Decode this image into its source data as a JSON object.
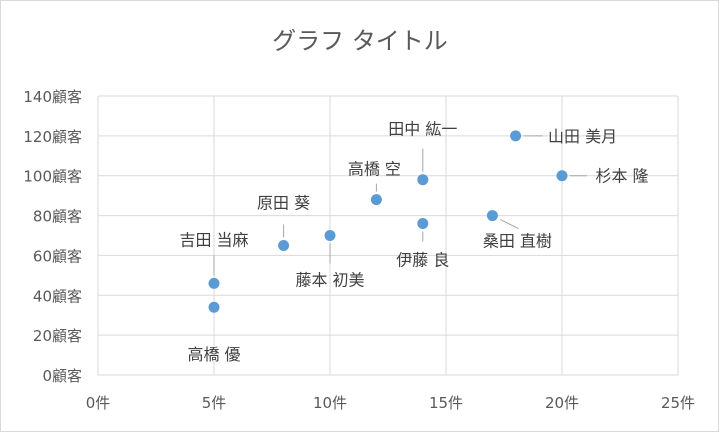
{
  "chart_data": {
    "type": "scatter",
    "title": "グラフ タイトル",
    "xlabel": "",
    "ylabel": "",
    "xlim": [
      0,
      25
    ],
    "ylim": [
      0,
      140
    ],
    "x_ticks": [
      0,
      5,
      10,
      15,
      20,
      25
    ],
    "y_ticks": [
      0,
      20,
      40,
      60,
      80,
      100,
      120,
      140
    ],
    "x_tick_labels": [
      "0件",
      "5件",
      "10件",
      "15件",
      "20件",
      "25件"
    ],
    "y_tick_labels": [
      "0顧客",
      "20顧客",
      "40顧客",
      "60顧客",
      "80顧客",
      "100顧客",
      "120顧客",
      "140顧客"
    ],
    "grid": true,
    "legend": "none",
    "marker_color": "#5b9bd5",
    "points": [
      {
        "x": 5,
        "y": 34,
        "label": "高橋 優"
      },
      {
        "x": 5,
        "y": 46,
        "label": "吉田 当麻"
      },
      {
        "x": 8,
        "y": 65,
        "label": "原田 葵"
      },
      {
        "x": 10,
        "y": 70,
        "label": "藤本 初美"
      },
      {
        "x": 12,
        "y": 88,
        "label": "高橋 空"
      },
      {
        "x": 14,
        "y": 98,
        "label": "田中 紘一"
      },
      {
        "x": 14,
        "y": 76,
        "label": "伊藤 良"
      },
      {
        "x": 17,
        "y": 80,
        "label": "桑田 直樹"
      },
      {
        "x": 18,
        "y": 120,
        "label": "山田 美月"
      },
      {
        "x": 20,
        "y": 100,
        "label": "杉本 隆"
      }
    ]
  }
}
